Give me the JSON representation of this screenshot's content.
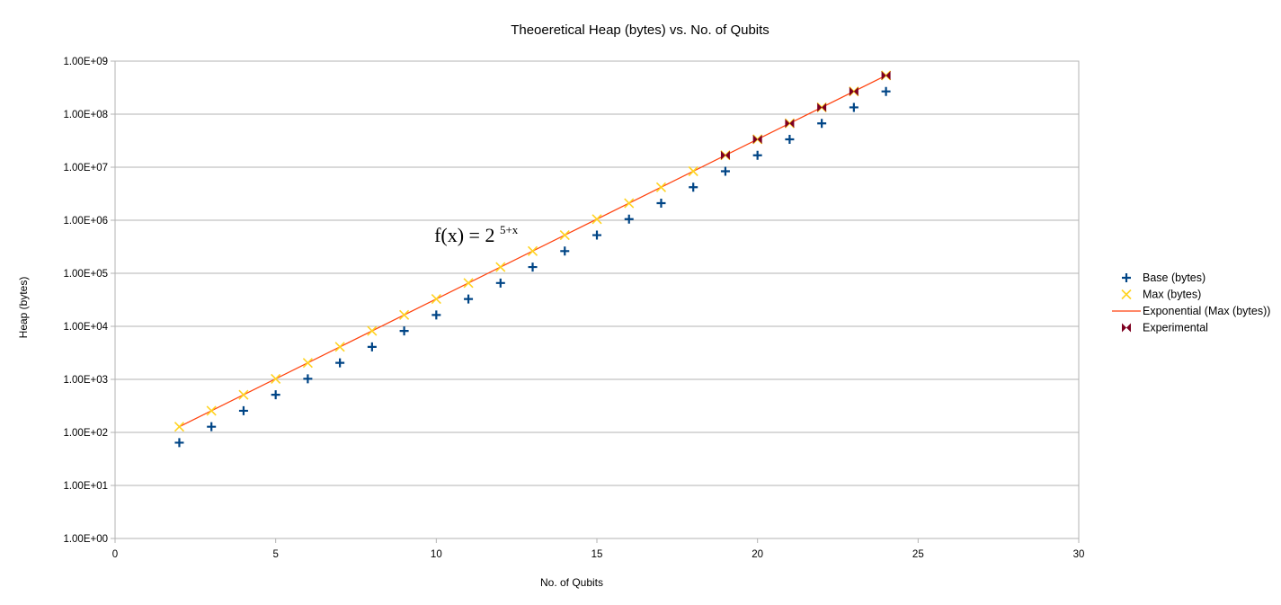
{
  "chart_data": {
    "type": "scatter",
    "title": "Theoeretical Heap (bytes) vs. No. of Qubits",
    "xlabel": "No. of Qubits",
    "ylabel": "Heap (bytes)",
    "xlim": [
      0,
      30
    ],
    "ylim": [
      1,
      1000000000
    ],
    "y_scale": "log",
    "x_ticks": [
      0,
      5,
      10,
      15,
      20,
      25,
      30
    ],
    "x_tick_labels": [
      "0",
      "5",
      "10",
      "15",
      "20",
      "25",
      "30"
    ],
    "y_ticks": [
      1,
      10,
      100,
      1000,
      10000,
      100000,
      1000000,
      10000000,
      100000000,
      1000000000
    ],
    "y_tick_labels": [
      "1.00E+00",
      "1.00E+01",
      "1.00E+02",
      "1.00E+03",
      "1.00E+04",
      "1.00E+05",
      "1.00E+06",
      "1.00E+07",
      "1.00E+08",
      "1.00E+09"
    ],
    "grid": "horizontal",
    "legend_position": "right",
    "series": [
      {
        "name": "Base (bytes)",
        "marker": "plus",
        "color": "#004586",
        "x": [
          2,
          3,
          4,
          5,
          6,
          7,
          8,
          9,
          10,
          11,
          12,
          13,
          14,
          15,
          16,
          17,
          18,
          19,
          20,
          21,
          22,
          23,
          24
        ],
        "y": [
          64,
          128,
          256,
          512,
          1024,
          2048,
          4096,
          8192,
          16384,
          32768,
          65536,
          131072,
          262144,
          524288,
          1048576,
          2097152,
          4194304,
          8388608,
          16777216,
          33554432,
          67108864,
          134217728,
          268435456
        ]
      },
      {
        "name": "Max (bytes)",
        "marker": "x",
        "color": "#ffd320",
        "x": [
          2,
          3,
          4,
          5,
          6,
          7,
          8,
          9,
          10,
          11,
          12,
          13,
          14,
          15,
          16,
          17,
          18,
          19,
          20,
          21,
          22,
          23,
          24
        ],
        "y": [
          128,
          256,
          512,
          1024,
          2048,
          4096,
          8192,
          16384,
          32768,
          65536,
          131072,
          262144,
          524288,
          1048576,
          2097152,
          4194304,
          8388608,
          16777216,
          33554432,
          67108864,
          134217728,
          268435456,
          536870912
        ]
      },
      {
        "name": "Exponential (Max (bytes))",
        "marker": "line",
        "color": "#ff420e",
        "x": [
          2,
          24
        ],
        "y": [
          128,
          536870912
        ]
      },
      {
        "name": "Experimental",
        "marker": "bowtie",
        "color": "#7e0021",
        "x": [
          19,
          20,
          21,
          22,
          23,
          24
        ],
        "y": [
          16777216,
          33554432,
          67108864,
          134217728,
          268435456,
          536870912
        ]
      }
    ],
    "annotation": {
      "base_text": "f(x) = 2",
      "superscript": "5+x",
      "x": 11,
      "y": 500000
    }
  }
}
